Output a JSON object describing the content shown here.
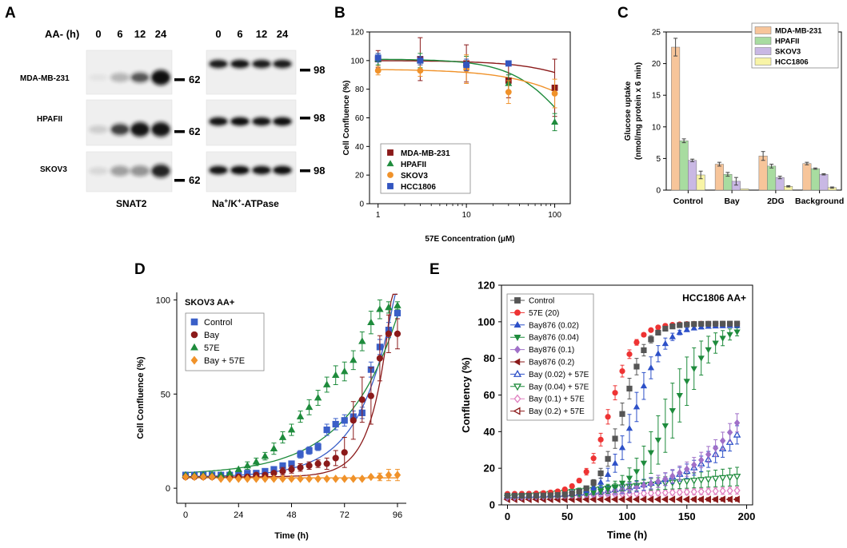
{
  "panel_letters": [
    "A",
    "B",
    "C",
    "D",
    "E"
  ],
  "blot": {
    "aa_label": "AA- (h)",
    "left_lanes": [
      "0",
      "6",
      "12",
      "24"
    ],
    "right_lanes": [
      "0",
      "6",
      "12",
      "24"
    ],
    "rows": [
      "MDA-MB-231",
      "HPAFII",
      "SKOV3"
    ],
    "left_marker": "62",
    "right_marker": "98",
    "left_caption": "SNAT2",
    "right_caption_parts": [
      "Na",
      "+",
      "/K",
      "+",
      "-ATPase"
    ],
    "band_intensity_left": [
      [
        0.05,
        0.25,
        0.45,
        0.85
      ],
      [
        0.15,
        0.55,
        0.8,
        0.8
      ],
      [
        0.1,
        0.35,
        0.4,
        0.7
      ]
    ],
    "band_intensity_right": [
      [
        0.75,
        0.8,
        0.75,
        0.75
      ],
      [
        0.8,
        0.85,
        0.8,
        0.85
      ],
      [
        0.8,
        0.85,
        0.8,
        0.85
      ]
    ]
  },
  "chart_data": [
    {
      "id": "B",
      "type": "scatter",
      "title": "",
      "xlabel": "57E Concentration  (μM)",
      "ylabel": "Cell Confluence (%)",
      "xscale": "log",
      "xlim": [
        0.8,
        150
      ],
      "ylim": [
        0,
        120
      ],
      "xticks": [
        1,
        10,
        100
      ],
      "xtick_labels": [
        "1",
        "10",
        "100"
      ],
      "yticks": [
        0,
        20,
        40,
        60,
        80,
        100,
        120
      ],
      "legend_position": "lower-left",
      "series": [
        {
          "name": "MDA-MB-231",
          "color": "#8b1a1a",
          "marker": "square",
          "x": [
            1,
            3,
            10,
            30,
            100
          ],
          "y": [
            101,
            101,
            98,
            86,
            81
          ],
          "err": [
            6,
            15,
            13,
            12,
            20
          ],
          "fit": "hill",
          "fit_top": 100,
          "fit_bottom": 0,
          "fit_ec50": 1100,
          "fit_n": 1.0
        },
        {
          "name": "HPAFII",
          "color": "#1e8b3c",
          "marker": "triangle",
          "x": [
            1,
            3,
            10,
            30,
            100
          ],
          "y": [
            101,
            100,
            98,
            84,
            57
          ],
          "err": [
            4,
            5,
            5,
            6,
            6
          ],
          "fit": "hill",
          "fit_top": 101,
          "fit_bottom": 0,
          "fit_ec50": 170,
          "fit_n": 1.3
        },
        {
          "name": "SKOV3",
          "color": "#f0922a",
          "marker": "circle",
          "x": [
            1,
            3,
            10,
            30,
            100
          ],
          "y": [
            93,
            93,
            94,
            78,
            77
          ],
          "err": [
            3,
            4,
            10,
            8,
            10
          ],
          "fit": "hill",
          "fit_top": 94,
          "fit_bottom": 0,
          "fit_ec50": 600,
          "fit_n": 0.9
        },
        {
          "name": "HCC1806",
          "color": "#3355c0",
          "marker": "square",
          "x": [
            1,
            3,
            10,
            30
          ],
          "y": [
            102,
            100,
            97,
            98
          ],
          "err": [
            3,
            3,
            4,
            0
          ],
          "fit": "none"
        }
      ]
    },
    {
      "id": "C",
      "type": "bar",
      "title": "",
      "xlabel": "",
      "ylabel_lines": [
        "Glucose uptake",
        "(nmol/mg protein x 6 min)"
      ],
      "ylim": [
        0,
        25
      ],
      "yticks": [
        0,
        5,
        10,
        15,
        20,
        25
      ],
      "categories": [
        "Control",
        "Bay",
        "2DG",
        "Background"
      ],
      "legend_position": "top-right",
      "series": [
        {
          "name": "MDA-MB-231",
          "color": "#f7c59a",
          "values": [
            22.6,
            4.1,
            5.4,
            4.2
          ],
          "err": [
            1.4,
            0.3,
            0.7,
            0.2
          ]
        },
        {
          "name": "HPAFII",
          "color": "#a8dca0",
          "values": [
            7.8,
            2.5,
            3.8,
            3.4
          ],
          "err": [
            0.3,
            0.3,
            0.3,
            0.1
          ]
        },
        {
          "name": "SKOV3",
          "color": "#c9b8e4",
          "values": [
            4.7,
            1.4,
            2.0,
            2.5
          ],
          "err": [
            0.2,
            0.6,
            0.2,
            0.1
          ]
        },
        {
          "name": "HCC1806",
          "color": "#f8f4a6",
          "values": [
            2.4,
            0.2,
            0.6,
            0.4
          ],
          "err": [
            0.6,
            0.0,
            0.1,
            0.1
          ]
        }
      ]
    },
    {
      "id": "D",
      "type": "scatter",
      "title": "SKOV3 AA+",
      "xlabel": "Time (h)",
      "ylabel": "Cell Confluence (%)",
      "xlim": [
        -4,
        100
      ],
      "ylim": [
        -8,
        104
      ],
      "xticks": [
        0,
        24,
        48,
        72,
        96
      ],
      "yticks": [
        0,
        50,
        100
      ],
      "legend_position": "top-left",
      "series": [
        {
          "name": "Control",
          "color": "#3a5fc8",
          "marker": "square",
          "x": [
            0,
            4,
            8,
            12,
            16,
            20,
            24,
            28,
            32,
            36,
            40,
            44,
            48,
            52,
            56,
            60,
            64,
            68,
            72,
            76,
            80,
            84,
            88,
            92,
            96
          ],
          "y": [
            7,
            7,
            7,
            7,
            7,
            7,
            7,
            8,
            8,
            9,
            10,
            12,
            13,
            18,
            20,
            22,
            31,
            34,
            36,
            38,
            40,
            63,
            75,
            84,
            93
          ],
          "err": [
            1,
            1,
            1,
            1,
            1,
            1,
            1,
            1,
            1,
            1,
            1,
            1,
            1,
            2,
            2,
            2,
            3,
            3,
            3,
            3,
            3,
            4,
            4,
            4,
            3
          ],
          "fit_base": 6,
          "fit_k": 0.0656,
          "fit_t0": 95.3
        },
        {
          "name": "Bay",
          "color": "#8b1a1a",
          "marker": "circle",
          "x": [
            0,
            4,
            8,
            12,
            16,
            20,
            24,
            28,
            32,
            36,
            40,
            44,
            48,
            52,
            56,
            60,
            64,
            68,
            72,
            76,
            80,
            84,
            88,
            92,
            96
          ],
          "y": [
            6,
            6,
            6,
            6,
            6,
            6,
            6,
            6,
            7,
            7,
            8,
            9,
            10,
            11,
            12,
            13,
            13,
            16,
            19,
            36,
            47,
            49,
            69,
            82,
            82
          ],
          "err": [
            1,
            1,
            1,
            1,
            1,
            1,
            1,
            1,
            1,
            1,
            1,
            2,
            2,
            2,
            2,
            2,
            3,
            4,
            8,
            10,
            12,
            15,
            12,
            10,
            8
          ],
          "fit_base": 6,
          "fit_k": 0.123,
          "fit_t0": 93.6
        },
        {
          "name": "57E",
          "color": "#1e8b3c",
          "marker": "triangle",
          "x": [
            0,
            4,
            8,
            12,
            16,
            20,
            24,
            28,
            32,
            36,
            40,
            44,
            48,
            52,
            56,
            60,
            64,
            68,
            72,
            76,
            80,
            84,
            88,
            92,
            96
          ],
          "y": [
            7,
            7,
            7,
            7,
            7,
            8,
            10,
            12,
            14,
            17,
            21,
            27,
            31,
            38,
            43,
            48,
            55,
            60,
            62,
            68,
            78,
            88,
            95,
            96,
            97
          ],
          "err": [
            1,
            1,
            1,
            1,
            1,
            1,
            1,
            2,
            2,
            2,
            3,
            3,
            3,
            3,
            4,
            4,
            4,
            5,
            5,
            5,
            5,
            6,
            5,
            3,
            2
          ],
          "fit_base": 7,
          "fit_k": 0.0435,
          "fit_t0": 99.8
        },
        {
          "name": "Bay + 57E",
          "color": "#f0922a",
          "marker": "diamond",
          "x": [
            0,
            4,
            8,
            12,
            16,
            20,
            24,
            28,
            32,
            36,
            40,
            44,
            48,
            52,
            56,
            60,
            64,
            68,
            72,
            76,
            80,
            84,
            88,
            92,
            96
          ],
          "y": [
            6,
            6,
            6,
            6,
            5,
            5,
            5,
            5,
            5,
            5,
            5,
            5,
            5,
            5,
            5,
            5,
            5,
            5,
            5,
            5,
            5,
            6,
            6,
            7,
            7
          ],
          "err": [
            1,
            1,
            1,
            1,
            1,
            1,
            1,
            1,
            1,
            1,
            1,
            1,
            1,
            1,
            1,
            1,
            1,
            1,
            1,
            1,
            1,
            1,
            2,
            3,
            3
          ],
          "fit_base": 5.5,
          "fit_k": 0,
          "fit_t0": 0
        }
      ]
    },
    {
      "id": "E",
      "type": "scatter",
      "title": "HCC1806 AA+",
      "xlabel": "Time (h)",
      "ylabel": "Confluency (%)",
      "xlim": [
        -5,
        205
      ],
      "ylim": [
        0,
        120
      ],
      "xticks": [
        0,
        50,
        100,
        150,
        200
      ],
      "yticks": [
        0,
        20,
        40,
        60,
        80,
        100,
        120
      ],
      "legend_position": "top-left",
      "series": [
        {
          "name": "Control",
          "color": "#555555",
          "marker": "square",
          "filled": true,
          "model": "logistic",
          "base": 5,
          "top": 99,
          "mid": 97,
          "k": 0.1,
          "err_max": 6
        },
        {
          "name": "57E (20)",
          "color": "#ee3333",
          "marker": "circle",
          "filled": true,
          "model": "logistic",
          "base": 6,
          "top": 99,
          "mid": 86,
          "k": 0.095,
          "err_max": 4
        },
        {
          "name": "Bay876 (0.02)",
          "color": "#2d50c8",
          "marker": "triangle",
          "filled": true,
          "model": "logistic",
          "base": 5,
          "top": 98,
          "mid": 107,
          "k": 0.085,
          "err_max": 8
        },
        {
          "name": "Bay876 (0.04)",
          "color": "#1e8b3c",
          "marker": "triangle-down",
          "filled": true,
          "model": "logistic",
          "base": 5,
          "top": 98,
          "mid": 138,
          "k": 0.06,
          "err_max": 15
        },
        {
          "name": "Bay876 (0.1)",
          "color": "#a070c8",
          "marker": "diamond",
          "filled": true,
          "model": "exp",
          "base": 4,
          "scale": 0.55,
          "rate": 0.0225,
          "err_max": 5
        },
        {
          "name": "Bay876 (0.2)",
          "color": "#8b1a1a",
          "marker": "triangle-left",
          "filled": true,
          "model": "flat",
          "base": 3,
          "err_max": 1
        },
        {
          "name": "Bay (0.02) +  57E",
          "color": "#2d50c8",
          "marker": "triangle",
          "filled": false,
          "model": "exp",
          "base": 5,
          "scale": 0.6,
          "rate": 0.021,
          "err_max": 5
        },
        {
          "name": "Bay (0.04) +  57E",
          "color": "#1e8b3c",
          "marker": "triangle-down",
          "filled": false,
          "model": "linear",
          "base": 4,
          "slope": 0.06,
          "err_max": 5
        },
        {
          "name": "Bay (0.1) +  57E",
          "color": "#e080c0",
          "marker": "diamond",
          "filled": false,
          "model": "linear",
          "base": 4,
          "slope": 0.02,
          "err_max": 2
        },
        {
          "name": "Bay (0.2) +  57E",
          "color": "#8b1a1a",
          "marker": "triangle-left",
          "filled": false,
          "model": "flat",
          "base": 3,
          "err_max": 1
        }
      ],
      "x_sample_start": 0,
      "x_sample_end": 192,
      "x_sample_step": 6
    }
  ]
}
